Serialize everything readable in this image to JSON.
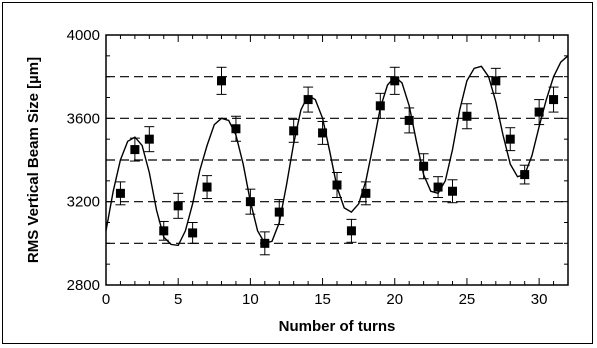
{
  "chart_data": {
    "type": "scatter",
    "title": "",
    "xlabel": "Number of turns",
    "ylabel": "RMS Vertical Beam Size [µm]",
    "xlim": [
      0,
      32
    ],
    "ylim": [
      2800,
      4000
    ],
    "x_ticks": [
      0,
      5,
      10,
      15,
      20,
      25,
      30
    ],
    "y_ticks": [
      2800,
      3200,
      3600,
      4000
    ],
    "x_tick_labels": [
      "0",
      "5",
      "10",
      "15",
      "20",
      "25",
      "30"
    ],
    "y_tick_labels": [
      "2800",
      "3200",
      "3600",
      "4000"
    ],
    "reference_lines_y": [
      3000,
      3200,
      3400,
      3600,
      3800
    ],
    "grid": false,
    "legend": "none",
    "marker_color": "#000000",
    "points": {
      "x": [
        1,
        2,
        3,
        4,
        5,
        6,
        7,
        8,
        9,
        10,
        11,
        12,
        13,
        14,
        15,
        16,
        17,
        18,
        19,
        20,
        21,
        22,
        23,
        24,
        25,
        27,
        28,
        29,
        30,
        31
      ],
      "y": [
        3240,
        3450,
        3500,
        3060,
        3180,
        3050,
        3270,
        3780,
        3550,
        3200,
        3000,
        3150,
        3540,
        3690,
        3530,
        3280,
        3060,
        3240,
        3660,
        3780,
        3590,
        3370,
        3270,
        3250,
        3610,
        3780,
        3500,
        3330,
        3630,
        3690
      ],
      "error": [
        55,
        55,
        60,
        45,
        60,
        50,
        55,
        65,
        60,
        60,
        55,
        60,
        55,
        60,
        55,
        60,
        55,
        55,
        60,
        65,
        60,
        60,
        50,
        55,
        60,
        60,
        55,
        45,
        60,
        60
      ]
    },
    "fit_curve": {
      "x": [
        0,
        0.5,
        1,
        1.5,
        2,
        2.5,
        3,
        3.5,
        4,
        4.5,
        5,
        5.5,
        6,
        6.5,
        7,
        7.5,
        8,
        8.5,
        9,
        9.5,
        10,
        10.5,
        11,
        11.5,
        12,
        12.5,
        13,
        13.5,
        14,
        14.5,
        15,
        15.5,
        16,
        16.5,
        17,
        17.5,
        18,
        18.5,
        19,
        19.5,
        20,
        20.5,
        21,
        21.5,
        22,
        22.5,
        23,
        23.5,
        24,
        24.5,
        25,
        25.5,
        26,
        26.5,
        27,
        27.5,
        28,
        28.5,
        29,
        29.5,
        30,
        30.5,
        31,
        31.5,
        32
      ],
      "y": [
        3060,
        3250,
        3400,
        3490,
        3510,
        3470,
        3340,
        3160,
        3030,
        2995,
        2990,
        3060,
        3190,
        3350,
        3470,
        3570,
        3600,
        3590,
        3520,
        3380,
        3200,
        3060,
        3000,
        3010,
        3100,
        3280,
        3480,
        3640,
        3710,
        3690,
        3600,
        3440,
        3270,
        3170,
        3150,
        3190,
        3300,
        3470,
        3650,
        3760,
        3800,
        3770,
        3660,
        3490,
        3330,
        3250,
        3240,
        3300,
        3450,
        3640,
        3780,
        3840,
        3850,
        3800,
        3680,
        3520,
        3380,
        3320,
        3330,
        3420,
        3560,
        3690,
        3800,
        3870,
        3900
      ]
    }
  }
}
